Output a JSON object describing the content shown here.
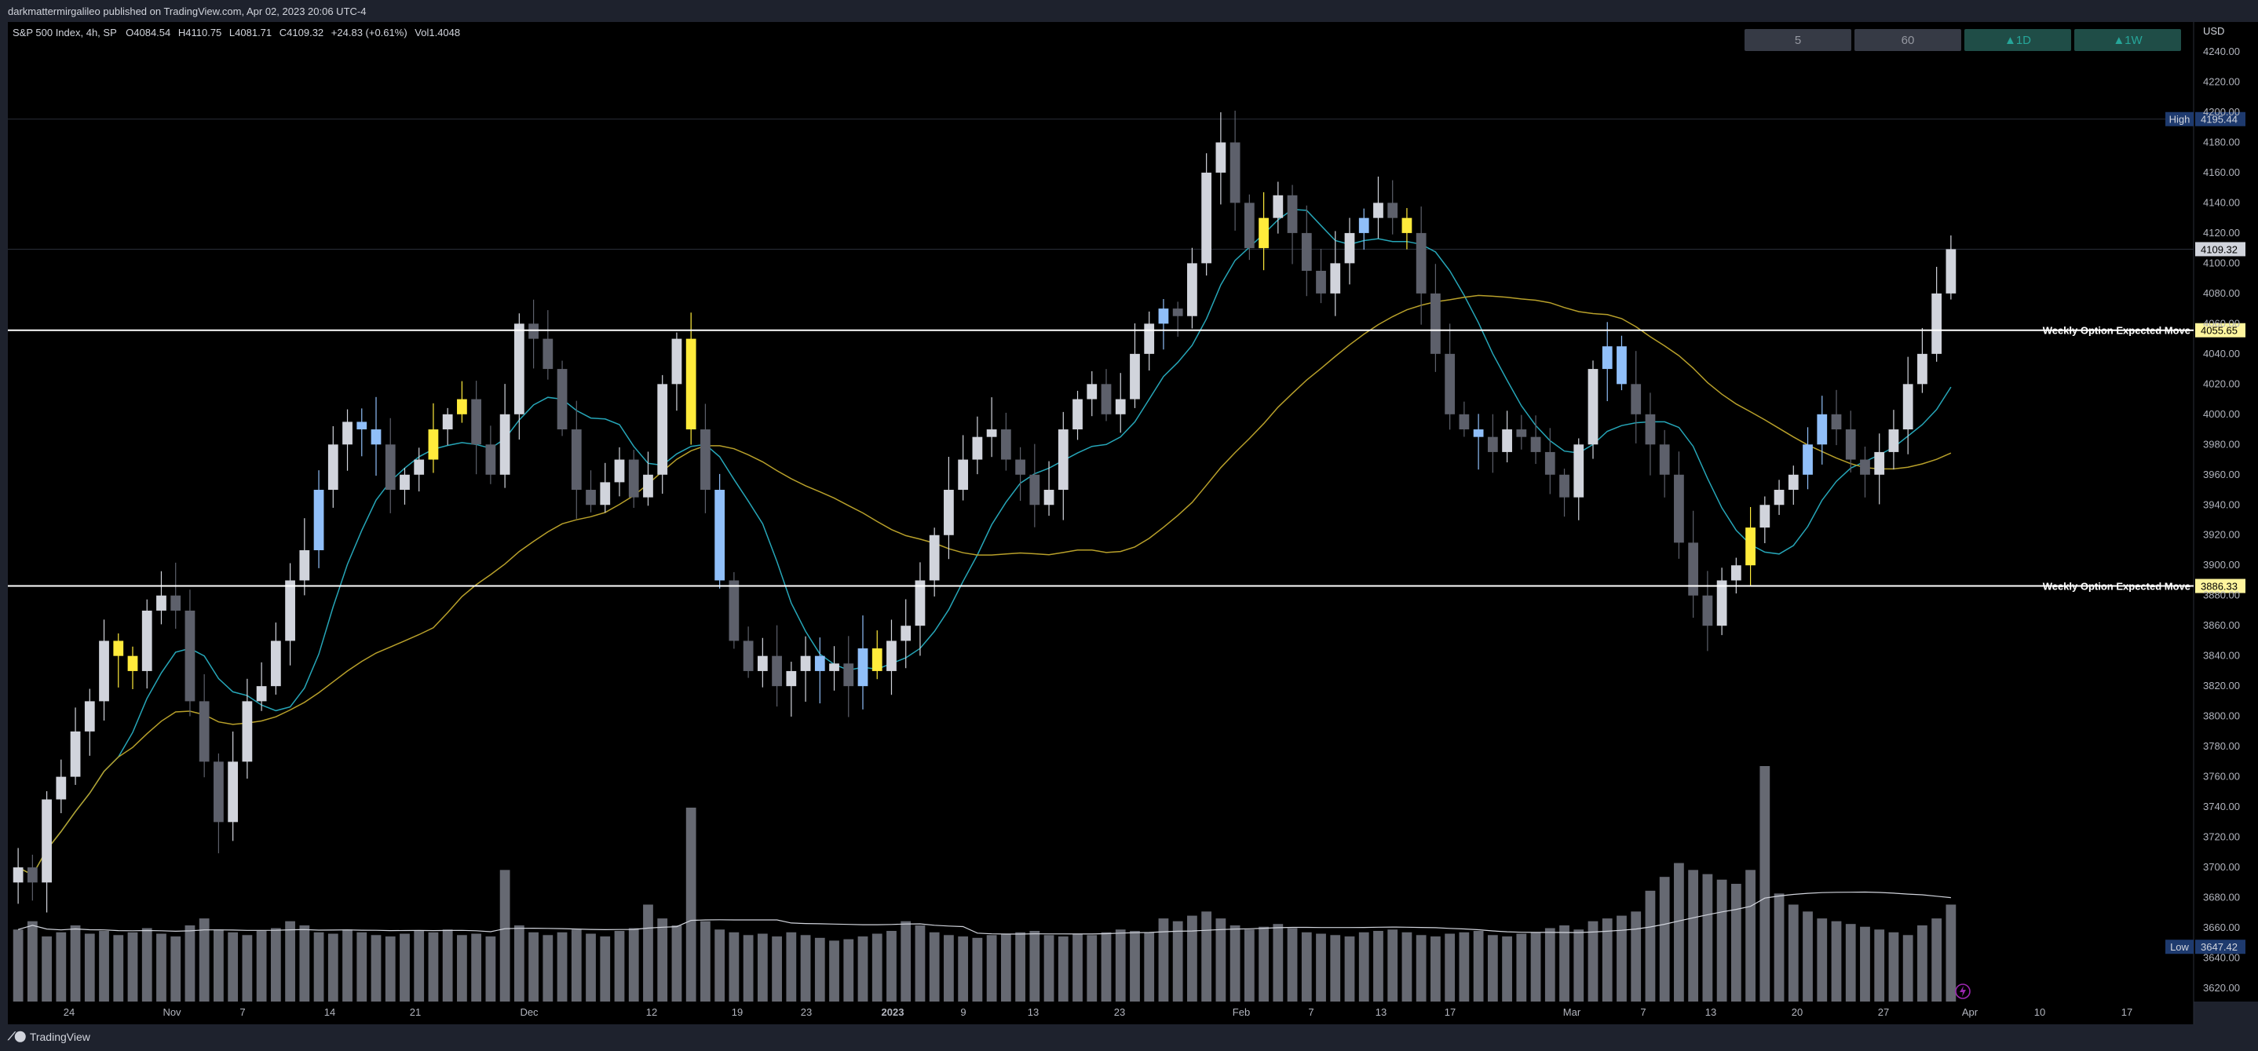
{
  "publisher": "darkmattermirgalileo published on TradingView.com, Apr 02, 2023 20:06 UTC-4",
  "legend": {
    "symbol": "S&P 500 Index, 4h, SP",
    "open": "O4084.54",
    "high": "H4110.75",
    "low": "L4081.71",
    "close": "C4109.32",
    "change": "+24.83 (+0.61%)",
    "volume": "Vol1.4048"
  },
  "timeframe_buttons": [
    {
      "label": "5",
      "active": false
    },
    {
      "label": "60",
      "active": false
    },
    {
      "label": "▲1D",
      "active": true
    },
    {
      "label": "▲1W",
      "active": true
    }
  ],
  "brand": "TradingView",
  "colors": {
    "background": "#000000",
    "frame": "#1e222d",
    "candle_up": "#d1d4dc",
    "candle_down": "#5d606b",
    "candle_highlight_blue": "#90bff9",
    "candle_highlight_yellow": "#ffeb3b",
    "ma_fast": "#26a6b8",
    "ma_slow": "#b8a02a",
    "volume_bar": "#787b86",
    "volume_avg": "#d1d4dc",
    "level_line": "#ffffff",
    "accent_blue": "#1e3a6e",
    "active_button": "#1f4d47"
  },
  "chart_data": {
    "type": "candlestick",
    "title": "S&P 500 Index, 4h, SP",
    "currency": "USD",
    "ylim": [
      3610,
      4250
    ],
    "y_ticks": [
      3620,
      3640,
      3660,
      3680,
      3700,
      3720,
      3740,
      3760,
      3780,
      3800,
      3820,
      3840,
      3860,
      3880,
      3900,
      3920,
      3940,
      3960,
      3980,
      4000,
      4020,
      4040,
      4060,
      4080,
      4100,
      4120,
      4140,
      4160,
      4180,
      4200,
      4220,
      4240
    ],
    "x_tick_labels": [
      "24",
      "Nov",
      "7",
      "14",
      "21",
      "Dec",
      "12",
      "19",
      "23",
      "2023",
      "9",
      "13",
      "23",
      "Feb",
      "7",
      "13",
      "17",
      "Mar",
      "7",
      "13",
      "20",
      "27",
      "Apr",
      "10",
      "17"
    ],
    "levels": [
      {
        "name": "Weekly Option Expected Move",
        "value": 4055.65
      },
      {
        "name": "Weekly Option Expected Move",
        "value": 3886.33
      }
    ],
    "markers": [
      {
        "name": "High",
        "value": 4195.44
      },
      {
        "name": "Low",
        "value": 3647.42
      },
      {
        "name": "Last",
        "value": 4109.32
      }
    ],
    "close_series": [
      3700,
      3690,
      3745,
      3760,
      3790,
      3810,
      3850,
      3840,
      3830,
      3870,
      3880,
      3870,
      3810,
      3770,
      3730,
      3770,
      3810,
      3820,
      3850,
      3890,
      3910,
      3950,
      3980,
      3995,
      3990,
      3980,
      3950,
      3960,
      3970,
      3990,
      4000,
      4010,
      3980,
      3960,
      4000,
      4060,
      4050,
      4030,
      3990,
      3950,
      3940,
      3955,
      3970,
      3945,
      3960,
      4020,
      4050,
      3990,
      3950,
      3890,
      3850,
      3830,
      3840,
      3820,
      3830,
      3840,
      3830,
      3835,
      3820,
      3845,
      3830,
      3850,
      3860,
      3890,
      3920,
      3950,
      3970,
      3985,
      3990,
      3970,
      3960,
      3940,
      3950,
      3990,
      4010,
      4020,
      4000,
      4010,
      4040,
      4060,
      4070,
      4065,
      4100,
      4160,
      4180,
      4140,
      4110,
      4130,
      4145,
      4120,
      4095,
      4080,
      4100,
      4120,
      4130,
      4140,
      4130,
      4120,
      4080,
      4040,
      4000,
      3990,
      3985,
      3975,
      3990,
      3985,
      3975,
      3960,
      3945,
      3980,
      4030,
      4045,
      4020,
      4000,
      3980,
      3960,
      3915,
      3880,
      3860,
      3890,
      3900,
      3925,
      3940,
      3950,
      3960,
      3980,
      4000,
      3990,
      3970,
      3960,
      3975,
      3990,
      4020,
      4040,
      4080,
      4109.32
    ],
    "volume_series": [
      52,
      58,
      47,
      50,
      55,
      49,
      51,
      48,
      50,
      53,
      49,
      47,
      55,
      60,
      52,
      50,
      48,
      51,
      53,
      58,
      55,
      50,
      49,
      52,
      50,
      48,
      47,
      49,
      51,
      50,
      52,
      48,
      49,
      47,
      95,
      55,
      50,
      48,
      50,
      52,
      49,
      47,
      51,
      53,
      70,
      60,
      55,
      140,
      58,
      52,
      50,
      48,
      49,
      47,
      50,
      48,
      46,
      44,
      45,
      47,
      49,
      51,
      58,
      55,
      50,
      48,
      47,
      46,
      48,
      49,
      50,
      51,
      48,
      47,
      49,
      48,
      50,
      52,
      51,
      50,
      60,
      58,
      62,
      65,
      60,
      55,
      52,
      54,
      56,
      53,
      50,
      49,
      48,
      47,
      50,
      51,
      52,
      50,
      48,
      47,
      49,
      50,
      51,
      48,
      47,
      49,
      50,
      53,
      55,
      52,
      58,
      60,
      62,
      65,
      80,
      90,
      100,
      95,
      92,
      88,
      85,
      95,
      170,
      78,
      70,
      65,
      60,
      58,
      56,
      54,
      52,
      50,
      48,
      55,
      60,
      70
    ],
    "x_ticks_style": "date",
    "grid": false,
    "legend_position": "top-left"
  }
}
